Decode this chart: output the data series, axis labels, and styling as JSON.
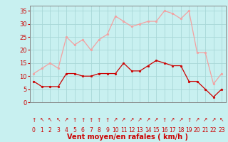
{
  "hours": [
    0,
    1,
    2,
    3,
    4,
    5,
    6,
    7,
    8,
    9,
    10,
    11,
    12,
    13,
    14,
    15,
    16,
    17,
    18,
    19,
    20,
    21,
    22,
    23
  ],
  "wind_avg": [
    8,
    6,
    6,
    6,
    11,
    11,
    10,
    10,
    11,
    11,
    11,
    15,
    12,
    12,
    14,
    16,
    15,
    14,
    14,
    8,
    8,
    5,
    2,
    5
  ],
  "wind_gust": [
    11,
    13,
    15,
    13,
    25,
    22,
    24,
    20,
    24,
    26,
    33,
    31,
    29,
    30,
    31,
    31,
    35,
    34,
    32,
    35,
    19,
    19,
    7,
    11
  ],
  "bg_color": "#c8f0f0",
  "grid_color": "#a8d8d8",
  "line_avg_color": "#cc0000",
  "line_gust_color": "#f4a0a0",
  "marker_size": 2,
  "xlabel": "Vent moyen/en rafales ( km/h )",
  "xlabel_color": "#cc0000",
  "tick_color": "#cc0000",
  "spine_color": "#888888",
  "ylim": [
    0,
    37
  ],
  "yticks": [
    0,
    5,
    10,
    15,
    20,
    25,
    30,
    35
  ],
  "tick_fontsize": 6,
  "label_fontsize": 7,
  "arrow_symbols": [
    "↑",
    "↖",
    "↖",
    "↖",
    "↗",
    "↑",
    "↑",
    "↑",
    "↑",
    "↑",
    "↗",
    "↗",
    "↗",
    "↗",
    "↗",
    "↗",
    "↑",
    "↗",
    "↗",
    "↑",
    "↗",
    "↗",
    "↗",
    "↖"
  ]
}
